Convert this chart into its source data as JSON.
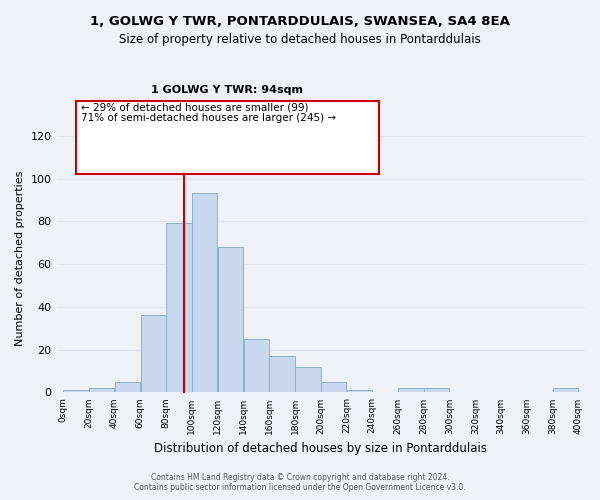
{
  "title": "1, GOLWG Y TWR, PONTARDDULAIS, SWANSEA, SA4 8EA",
  "subtitle": "Size of property relative to detached houses in Pontarddulais",
  "xlabel": "Distribution of detached houses by size in Pontarddulais",
  "ylabel": "Number of detached properties",
  "bar_color": "#c8d8ee",
  "bar_edgecolor": "#8ab0cc",
  "bin_edges": [
    0,
    20,
    40,
    60,
    80,
    100,
    120,
    140,
    160,
    180,
    200,
    220,
    240,
    260,
    280,
    300,
    320,
    340,
    360,
    380,
    400
  ],
  "bar_heights": [
    1,
    2,
    5,
    36,
    79,
    93,
    68,
    25,
    17,
    12,
    5,
    1,
    0,
    2,
    2,
    0,
    0,
    0,
    0,
    2
  ],
  "ylim": [
    0,
    125
  ],
  "yticks": [
    0,
    20,
    40,
    60,
    80,
    100,
    120
  ],
  "annotation_title": "1 GOLWG Y TWR: 94sqm",
  "annotation_line1": "← 29% of detached houses are smaller (99)",
  "annotation_line2": "71% of semi-detached houses are larger (245) →",
  "vline_x": 94,
  "vline_color": "#cc0000",
  "footer_line1": "Contains HM Land Registry data © Crown copyright and database right 2024.",
  "footer_line2": "Contains public sector information licensed under the Open Government Licence v3.0.",
  "grid_color": "#dde6f0",
  "background_color": "#eef2f7"
}
